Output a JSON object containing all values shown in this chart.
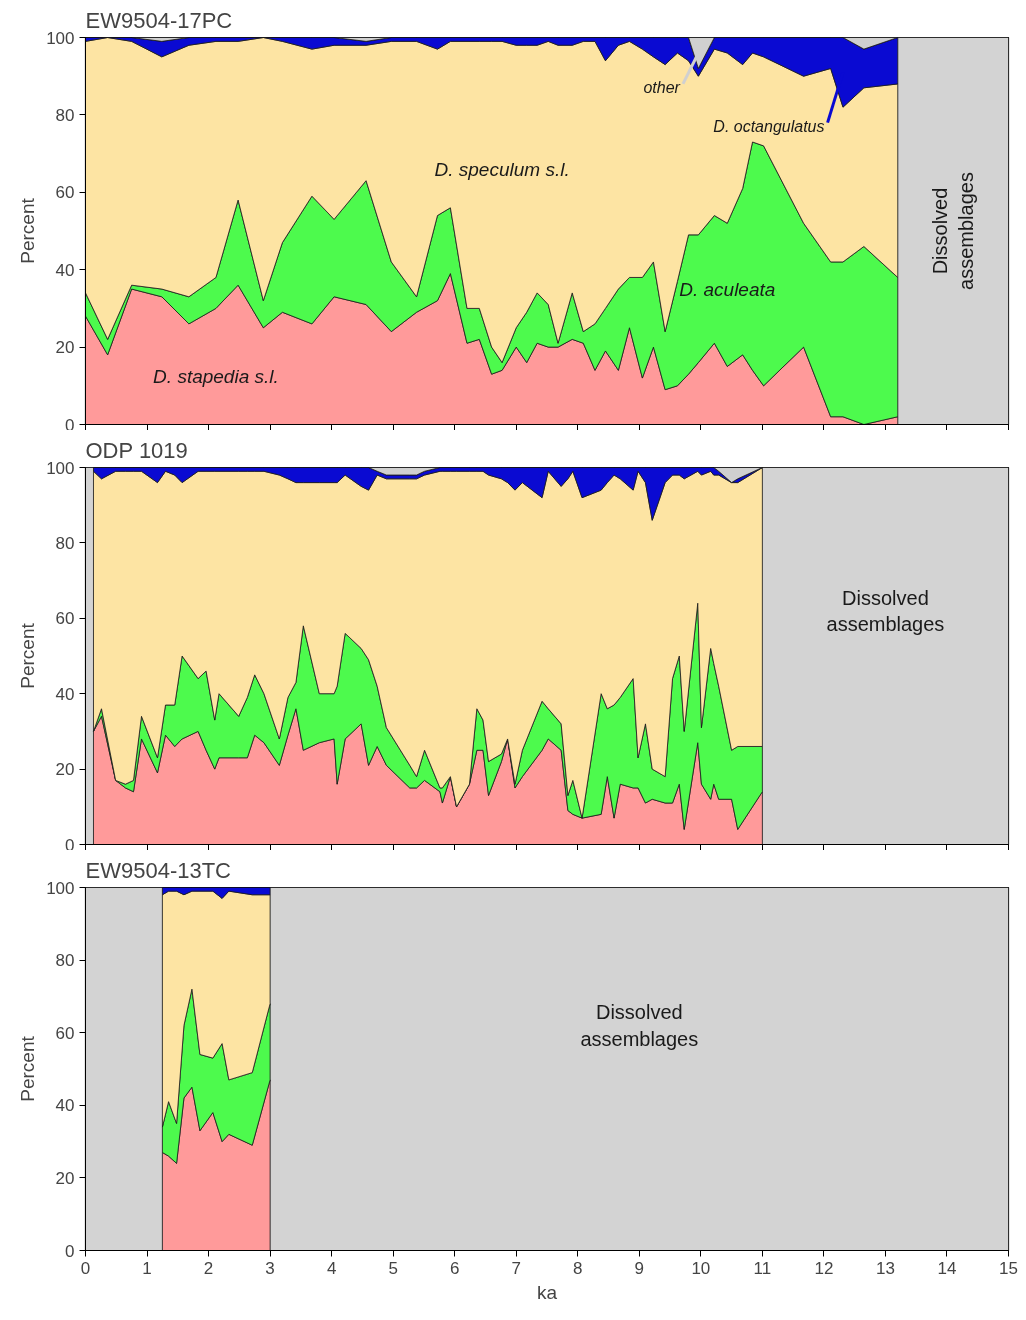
{
  "chart_data": [
    {
      "type": "area",
      "stacked": true,
      "title": "EW9504-17PC",
      "ylabel": "Percent",
      "tick_labels": "y",
      "xlim": [
        0,
        15
      ],
      "ylim": [
        0,
        100
      ],
      "xticks": [
        0,
        1,
        2,
        3,
        4,
        5,
        6,
        7,
        8,
        9,
        10,
        11,
        12,
        13,
        14,
        15
      ],
      "yticks": [
        0,
        20,
        40,
        60,
        80,
        100
      ],
      "x": [
        0,
        0.36,
        0.75,
        1.24,
        1.68,
        2.12,
        2.48,
        2.89,
        3.2,
        3.68,
        4.04,
        4.56,
        4.97,
        5.38,
        5.72,
        5.93,
        6.2,
        6.4,
        6.6,
        6.77,
        7.0,
        7.17,
        7.34,
        7.52,
        7.68,
        7.91,
        8.09,
        8.28,
        8.45,
        8.66,
        8.84,
        9.05,
        9.23,
        9.42,
        9.62,
        9.8,
        9.96,
        10.22,
        10.43,
        10.68,
        10.84,
        11.02,
        11.67,
        12.11,
        12.31,
        12.65,
        13.2
      ],
      "series": [
        {
          "name": "D. stapedia s.l.",
          "color": "#ff9a9a",
          "values": [
            28,
            18,
            35,
            33,
            26,
            30,
            36,
            25,
            29,
            26,
            33,
            31,
            24,
            29,
            32,
            39,
            21,
            22,
            13,
            14,
            20,
            16,
            21,
            20,
            20,
            22,
            21,
            14,
            19,
            14,
            25,
            12,
            20,
            9,
            10,
            13,
            16,
            21,
            15,
            18,
            14,
            10,
            20,
            2,
            2,
            0,
            2
          ]
        },
        {
          "name": "D. aculeata",
          "color": "#4dfa4d",
          "values": [
            6,
            4,
            1,
            2,
            7,
            8,
            22,
            7,
            18,
            33,
            20,
            32,
            18,
            4,
            22,
            17,
            9,
            8,
            7,
            2,
            5,
            13,
            13,
            11,
            1,
            12,
            3,
            12,
            11,
            21,
            13,
            26,
            22,
            15,
            27,
            36,
            33,
            33,
            37,
            43,
            59,
            62,
            32,
            40,
            40,
            46,
            36
          ]
        },
        {
          "name": "D. speculum s.l.",
          "color": "#fde4a3",
          "values": [
            65,
            78,
            63,
            60,
            65,
            61,
            41,
            68,
            52,
            38,
            45,
            35,
            57,
            66,
            43,
            43,
            69,
            69,
            79,
            83,
            73,
            69,
            64,
            68,
            77,
            64,
            75,
            73,
            64,
            63,
            61,
            59,
            53,
            69,
            59,
            45,
            41,
            43,
            44,
            32,
            23,
            23,
            38,
            50,
            40,
            41,
            50
          ]
        },
        {
          "name": "D. octangulatus",
          "color": "#0a0ad2",
          "values": [
            1,
            0,
            1,
            4,
            2,
            1,
            1,
            0,
            1,
            3,
            2,
            1,
            1,
            1,
            3,
            1,
            1,
            1,
            1,
            1,
            2,
            2,
            2,
            1,
            2,
            2,
            1,
            1,
            6,
            2,
            1,
            3,
            5,
            7,
            4,
            6,
            2,
            3,
            4,
            7,
            4,
            5,
            10,
            8,
            18,
            10,
            12
          ]
        },
        {
          "name": "other",
          "color": "#d0d0d0",
          "values": [
            0,
            0,
            0,
            1,
            0,
            0,
            0,
            0,
            0,
            0,
            0,
            1,
            0,
            0,
            0,
            0,
            0,
            0,
            0,
            0,
            0,
            0,
            0,
            0,
            0,
            0,
            0,
            0,
            0,
            0,
            0,
            0,
            0,
            0,
            0,
            0,
            8,
            0,
            0,
            0,
            0,
            0,
            0,
            0,
            0,
            3,
            0
          ]
        }
      ],
      "bands": [
        {
          "axis": "x",
          "from": 13.2,
          "to": 15,
          "label": "Dissolved assemblages",
          "color": "#d3d3d3"
        }
      ]
    },
    {
      "type": "area",
      "stacked": true,
      "title": "ODP 1019",
      "ylabel": "Percent",
      "tick_labels": "y",
      "xlim": [
        0,
        15
      ],
      "ylim": [
        0,
        100
      ],
      "xticks": [
        0,
        1,
        2,
        3,
        4,
        5,
        6,
        7,
        8,
        9,
        10,
        11,
        12,
        13,
        14,
        15
      ],
      "yticks": [
        0,
        20,
        40,
        60,
        80,
        100
      ],
      "x": [
        0.13,
        0.26,
        0.49,
        0.65,
        0.78,
        0.91,
        1.17,
        1.3,
        1.45,
        1.57,
        1.83,
        1.96,
        2.1,
        2.17,
        2.49,
        2.63,
        2.75,
        2.9,
        3.15,
        3.29,
        3.42,
        3.54,
        3.8,
        4.04,
        4.09,
        4.22,
        4.48,
        4.6,
        4.74,
        4.89,
        5.27,
        5.38,
        5.51,
        5.76,
        5.8,
        5.93,
        6.03,
        6.24,
        6.36,
        6.46,
        6.55,
        6.76,
        6.86,
        6.98,
        7.1,
        7.42,
        7.52,
        7.73,
        7.84,
        7.92,
        8.07,
        8.38,
        8.48,
        8.59,
        8.69,
        8.9,
        8.98,
        9.1,
        9.21,
        9.42,
        9.54,
        9.65,
        9.73,
        9.95,
        10.01,
        10.16,
        10.21,
        10.29,
        10.5,
        10.6,
        11.0
      ],
      "series": [
        {
          "color": "#ff9a9a",
          "values": [
            30,
            34,
            17,
            15,
            14,
            28,
            19,
            29,
            26,
            28,
            30,
            25,
            20,
            23,
            23,
            23,
            29,
            27,
            21,
            29,
            36,
            25,
            27,
            28,
            16,
            28,
            32,
            21,
            26,
            21,
            15,
            15,
            17,
            14,
            11,
            18,
            10,
            16,
            25,
            25,
            13,
            22,
            28,
            15,
            18,
            25,
            28,
            25,
            9,
            8,
            7,
            8,
            18,
            7,
            16,
            15,
            15,
            11,
            12,
            11,
            11,
            16,
            4,
            27,
            16,
            12,
            16,
            12,
            12,
            4,
            14
          ]
        },
        {
          "color": "#4dfa4d",
          "values": [
            0,
            2,
            0,
            1,
            3,
            6,
            4,
            8,
            11,
            22,
            14,
            21,
            13,
            17,
            11,
            16,
            16,
            13,
            7,
            10,
            7,
            33,
            13,
            12,
            26,
            28,
            20,
            28,
            16,
            10,
            6,
            3,
            8,
            1,
            4,
            0,
            0,
            0,
            11,
            8,
            9,
            2,
            0,
            1,
            7,
            13,
            8,
            7,
            4,
            9,
            0,
            32,
            18,
            30,
            23,
            29,
            8,
            21,
            8,
            7,
            33,
            34,
            26,
            37,
            15,
            40,
            32,
            30,
            13,
            22,
            12
          ]
        },
        {
          "color": "#fde4a3",
          "values": [
            69,
            61,
            82,
            83,
            82,
            65,
            73,
            62,
            61,
            46,
            55,
            53,
            66,
            59,
            65,
            60,
            54,
            59,
            70,
            58,
            53,
            38,
            56,
            56,
            54,
            42,
            43,
            45,
            56,
            66,
            76,
            79,
            73,
            84,
            84,
            81,
            89,
            83,
            63,
            66,
            76,
            73,
            68,
            78,
            71,
            54,
            63,
            63,
            84,
            82,
            85,
            54,
            60,
            61,
            58,
            50,
            76,
            64,
            66,
            78,
            54,
            48,
            67,
            35,
            67,
            47,
            50,
            56,
            71,
            70,
            74
          ]
        },
        {
          "color": "#0a0ad2",
          "values": [
            1,
            3,
            1,
            1,
            1,
            1,
            4,
            1,
            2,
            4,
            1,
            1,
            1,
            1,
            1,
            1,
            1,
            1,
            2,
            3,
            4,
            4,
            4,
            4,
            4,
            2,
            5,
            6,
            1,
            1,
            1,
            1,
            1,
            1,
            1,
            1,
            1,
            1,
            1,
            1,
            2,
            3,
            4,
            6,
            4,
            8,
            1,
            5,
            3,
            1,
            8,
            6,
            4,
            2,
            3,
            6,
            1,
            4,
            14,
            4,
            2,
            2,
            3,
            1,
            2,
            1,
            2,
            1,
            0,
            1,
            0
          ]
        },
        {
          "color": "#d0d0d0",
          "values": [
            0,
            0,
            0,
            0,
            0,
            0,
            0,
            0,
            0,
            0,
            0,
            0,
            0,
            0,
            0,
            0,
            0,
            0,
            0,
            0,
            0,
            0,
            0,
            0,
            0,
            0,
            0,
            0,
            1,
            2,
            2,
            2,
            1,
            0,
            0,
            0,
            0,
            0,
            0,
            0,
            0,
            0,
            0,
            0,
            0,
            0,
            0,
            0,
            0,
            0,
            0,
            0,
            0,
            0,
            0,
            0,
            0,
            0,
            0,
            0,
            0,
            0,
            0,
            0,
            0,
            0,
            0,
            1,
            4,
            3,
            0
          ]
        }
      ],
      "bands": [
        {
          "axis": "x",
          "from": 0,
          "to": 0.13,
          "label": null,
          "color": "#d3d3d3"
        },
        {
          "axis": "x",
          "from": 11.0,
          "to": 15,
          "label": "Dissolved assemblages",
          "color": "#d3d3d3"
        }
      ]
    },
    {
      "type": "area",
      "stacked": true,
      "title": "EW9504-13TC",
      "ylabel": "Percent",
      "xlabel": "ka",
      "xlim": [
        0,
        15
      ],
      "ylim": [
        0,
        100
      ],
      "xticks": [
        0,
        1,
        2,
        3,
        4,
        5,
        6,
        7,
        8,
        9,
        10,
        11,
        12,
        13,
        14,
        15
      ],
      "yticks": [
        0,
        20,
        40,
        60,
        80,
        100
      ],
      "x": [
        1.25,
        1.35,
        1.48,
        1.6,
        1.73,
        1.86,
        2.07,
        2.22,
        2.33,
        2.71,
        3.0
      ],
      "series": [
        {
          "color": "#ff9a9a",
          "values": [
            27,
            26,
            24,
            42,
            45,
            33,
            38,
            30,
            32,
            29,
            47
          ]
        },
        {
          "color": "#4dfa4d",
          "values": [
            7,
            15,
            11,
            20,
            27,
            21,
            15,
            27,
            15,
            20,
            21
          ]
        },
        {
          "color": "#fde4a3",
          "values": [
            64,
            58,
            64,
            36,
            27,
            45,
            46,
            40,
            52,
            49,
            30
          ]
        },
        {
          "color": "#0a0ad2",
          "values": [
            2,
            1,
            1,
            2,
            1,
            1,
            1,
            3,
            1,
            2,
            2
          ]
        }
      ],
      "bands": [
        {
          "axis": "x",
          "from": 0,
          "to": 1.25,
          "label": null,
          "color": "#d3d3d3"
        },
        {
          "axis": "x",
          "from": 3.0,
          "to": 15,
          "label": "Dissolved assemblages",
          "color": "#d3d3d3"
        }
      ]
    }
  ]
}
